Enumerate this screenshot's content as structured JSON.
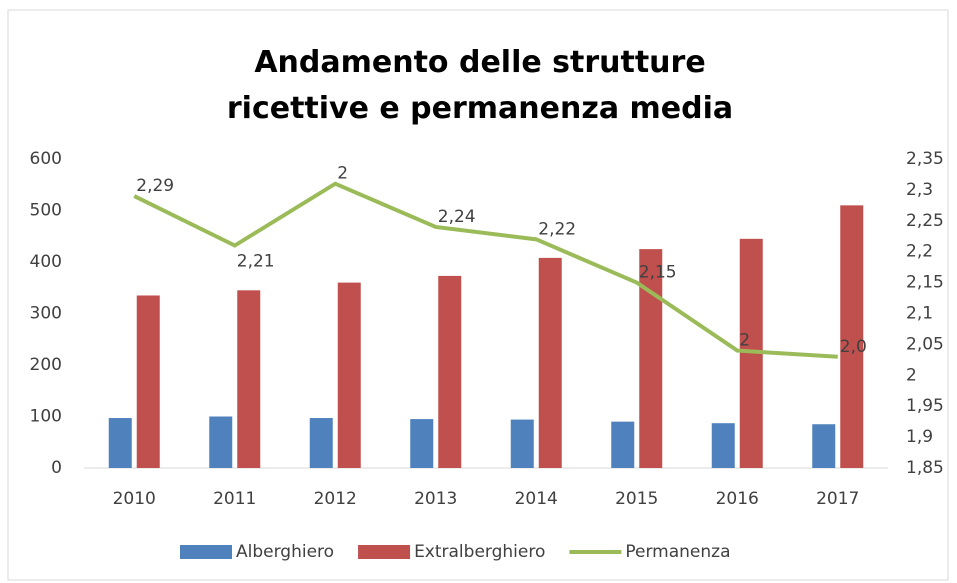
{
  "chart_data": {
    "type": "bar-line",
    "title": "Andamento delle strutture ricettive e permanenza media",
    "categories": [
      "2010",
      "2011",
      "2012",
      "2013",
      "2014",
      "2015",
      "2016",
      "2017"
    ],
    "series": [
      {
        "name": "Alberghiero",
        "type": "bar",
        "color": "#4f81bd",
        "values": [
          97,
          100,
          97,
          95,
          94,
          90,
          87,
          85
        ]
      },
      {
        "name": "Extralberghiero",
        "type": "bar",
        "color": "#c0504d",
        "values": [
          335,
          345,
          360,
          373,
          408,
          425,
          445,
          510
        ]
      },
      {
        "name": "Permanenza",
        "type": "line",
        "axis": "y2",
        "color": "#9bbb59",
        "values": [
          2.29,
          2.21,
          2.31,
          2.24,
          2.22,
          2.15,
          2.04,
          2.03
        ],
        "value_labels": [
          "2,29",
          "2,21",
          "2",
          "2,24",
          "2,22",
          "2,15",
          "2",
          "2,0"
        ]
      }
    ],
    "ylim": [
      0,
      600
    ],
    "yticks": [
      0,
      100,
      200,
      300,
      400,
      500,
      600
    ],
    "y2lim": [
      1.85,
      2.35
    ],
    "y2ticks": [
      {
        "value": 1.85,
        "label": "1,85"
      },
      {
        "value": 1.9,
        "label": "1,9"
      },
      {
        "value": 1.95,
        "label": "1,95"
      },
      2,
      {
        "value": 2.05,
        "label": "2,05"
      },
      {
        "value": 2.1,
        "label": "2,1"
      },
      {
        "value": 2.15,
        "label": "2,15"
      },
      {
        "value": 2.2,
        "label": "2,2"
      },
      {
        "value": 2.25,
        "label": "2,25"
      },
      {
        "value": 2.3,
        "label": "2,3"
      },
      {
        "value": 2.35,
        "label": "2,35"
      }
    ],
    "grid": false,
    "legend": "bottom"
  }
}
